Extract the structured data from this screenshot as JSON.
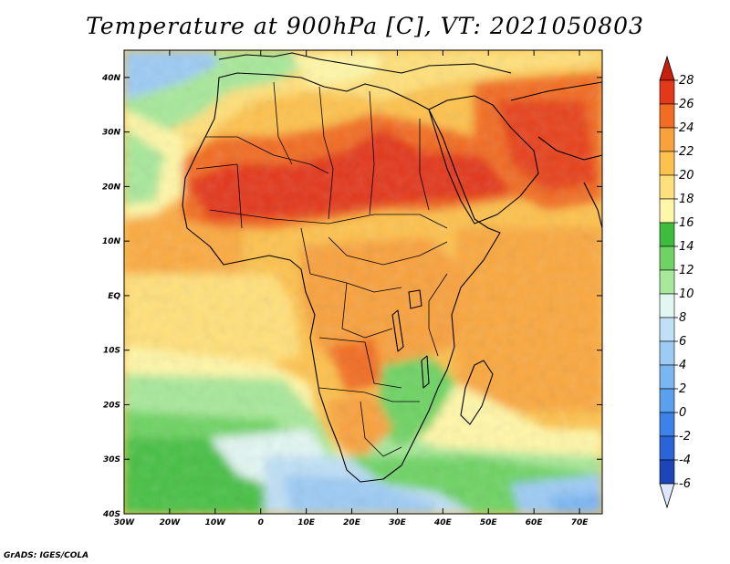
{
  "title": "Temperature at 900hPa [C], VT: 2021050803",
  "credit": "GrADS: IGES/COLA",
  "map": {
    "variable": "Temperature",
    "level": "900hPa",
    "units": "C",
    "valid_time": "2021050803",
    "lon_range": [
      -30,
      75
    ],
    "lat_range": [
      -40,
      45
    ],
    "lon_ticks": [
      {
        "value": -30,
        "label": "30W"
      },
      {
        "value": -20,
        "label": "20W"
      },
      {
        "value": -10,
        "label": "10W"
      },
      {
        "value": 0,
        "label": "0"
      },
      {
        "value": 10,
        "label": "10E"
      },
      {
        "value": 20,
        "label": "20E"
      },
      {
        "value": 30,
        "label": "30E"
      },
      {
        "value": 40,
        "label": "40E"
      },
      {
        "value": 50,
        "label": "50E"
      },
      {
        "value": 60,
        "label": "60E"
      },
      {
        "value": 70,
        "label": "70E"
      }
    ],
    "lat_ticks": [
      {
        "value": 40,
        "label": "40N"
      },
      {
        "value": 30,
        "label": "30N"
      },
      {
        "value": 20,
        "label": "20N"
      },
      {
        "value": 10,
        "label": "10N"
      },
      {
        "value": 0,
        "label": "EQ"
      },
      {
        "value": -10,
        "label": "10S"
      },
      {
        "value": -20,
        "label": "20S"
      },
      {
        "value": -30,
        "label": "30S"
      },
      {
        "value": -40,
        "label": "40S"
      }
    ]
  },
  "colorbar": {
    "levels": [
      "-6",
      "-4",
      "-2",
      "0",
      "2",
      "4",
      "6",
      "8",
      "10",
      "12",
      "14",
      "16",
      "18",
      "20",
      "22",
      "24",
      "26",
      "28"
    ],
    "colors": [
      "#1a1f80",
      "#1e45b8",
      "#2a64d6",
      "#3c82e8",
      "#5aa0ee",
      "#7ab6f2",
      "#9ccbf5",
      "#bfe0f6",
      "#e2f6f2",
      "#a8e89a",
      "#6ed364",
      "#3dbc3d",
      "#fff7a8",
      "#ffe07a",
      "#fdc24e",
      "#f9a13c",
      "#f26c22",
      "#e3391a",
      "#c81e0c"
    ],
    "under_color": "#dfe6ff",
    "over_color": "#c81e0c"
  }
}
